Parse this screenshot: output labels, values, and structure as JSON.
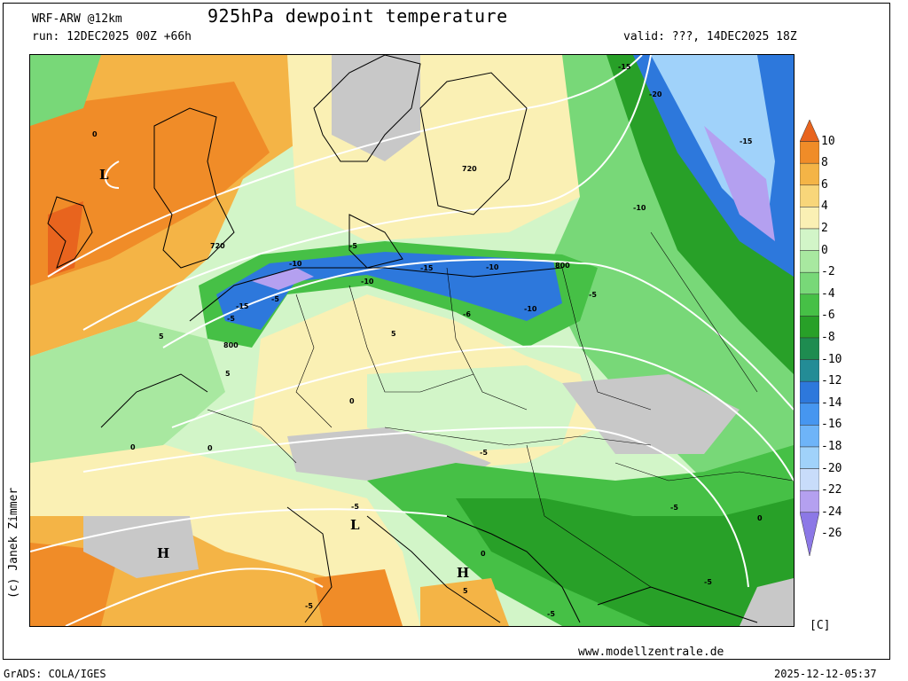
{
  "header": {
    "model": "WRF-ARW @12km",
    "title": "925hPa dewpoint temperature",
    "run": "run: 12DEC2025 00Z +66h",
    "valid": "valid: ???, 14DEC2025 18Z"
  },
  "credit": "(c) Janek Zimmer",
  "unit": "[C]",
  "website": "www.modellzentrale.de",
  "footer": {
    "software": "GrADS: COLA/IGES",
    "timestamp": "2025-12-12-05:37"
  },
  "legend": {
    "levels": [
      "10",
      "8",
      "6",
      "4",
      "2",
      "0",
      "-2",
      "-4",
      "-6",
      "-8",
      "-10",
      "-12",
      "-14",
      "-16",
      "-18",
      "-20",
      "-22",
      "-24",
      "-26"
    ],
    "colors": [
      "#e8641e",
      "#f08c28",
      "#f4b446",
      "#f8d67a",
      "#faf0b4",
      "#d2f5c8",
      "#a8e8a0",
      "#78d878",
      "#46c046",
      "#28a028",
      "#1e8c50",
      "#238c96",
      "#2d78dc",
      "#4696f0",
      "#6eb4f8",
      "#a0d2fa",
      "#c8dcfa",
      "#b4a0f0",
      "#8c78e6"
    ]
  },
  "map_labels": {
    "pressure_centers": [
      {
        "id": "low-nw",
        "text": "L"
      },
      {
        "id": "low-italy",
        "text": "L"
      },
      {
        "id": "high-west",
        "text": "H"
      },
      {
        "id": "high-italy",
        "text": "H"
      }
    ],
    "isolines": [
      "720",
      "720",
      "800",
      "800",
      "-15",
      "-20",
      "-15",
      "-10",
      "-15",
      "-10",
      "-10",
      "-10",
      "-5",
      "-5",
      "-5",
      "-15",
      "-5",
      "-6",
      "-10",
      "-5",
      "-5",
      "-5",
      "-5",
      "-5",
      "-5",
      "0",
      "0",
      "0",
      "0",
      "0",
      "0",
      "5",
      "5",
      "5",
      "5"
    ]
  }
}
